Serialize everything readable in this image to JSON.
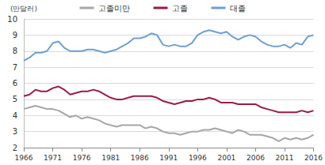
{
  "chart_data": {
    "type": "line",
    "ylabel": "(만달러)",
    "x": [
      1966,
      1967,
      1968,
      1969,
      1970,
      1971,
      1972,
      1973,
      1974,
      1975,
      1976,
      1977,
      1978,
      1979,
      1980,
      1981,
      1982,
      1983,
      1984,
      1985,
      1986,
      1987,
      1988,
      1989,
      1990,
      1991,
      1992,
      1993,
      1994,
      1995,
      1996,
      1997,
      1998,
      1999,
      2000,
      2001,
      2002,
      2003,
      2004,
      2005,
      2006,
      2007,
      2008,
      2009,
      2010,
      2011,
      2012,
      2013,
      2014,
      2015,
      2016
    ],
    "series": [
      {
        "name": "고졸미만",
        "color": "#a6a6a6",
        "values": [
          4.4,
          4.5,
          4.6,
          4.5,
          4.4,
          4.4,
          4.3,
          4.1,
          3.9,
          4.0,
          3.8,
          3.9,
          3.8,
          3.7,
          3.5,
          3.4,
          3.3,
          3.4,
          3.4,
          3.4,
          3.4,
          3.2,
          3.3,
          3.2,
          3.0,
          2.9,
          2.9,
          2.8,
          2.9,
          3.0,
          3.0,
          3.1,
          3.1,
          3.2,
          3.1,
          3.0,
          2.9,
          3.1,
          3.0,
          2.8,
          2.8,
          2.8,
          2.7,
          2.6,
          2.4,
          2.6,
          2.5,
          2.6,
          2.5,
          2.6,
          2.8
        ]
      },
      {
        "name": "고졸",
        "color": "#9b1b4a",
        "values": [
          5.2,
          5.3,
          5.6,
          5.5,
          5.5,
          5.7,
          5.8,
          5.6,
          5.3,
          5.4,
          5.5,
          5.5,
          5.6,
          5.5,
          5.3,
          5.1,
          5.0,
          5.0,
          5.1,
          5.2,
          5.2,
          5.2,
          5.2,
          5.1,
          4.9,
          4.8,
          4.7,
          4.8,
          4.9,
          4.9,
          5.0,
          5.0,
          5.1,
          5.0,
          4.8,
          4.8,
          4.8,
          4.7,
          4.7,
          4.7,
          4.7,
          4.5,
          4.4,
          4.3,
          4.2,
          4.2,
          4.2,
          4.2,
          4.3,
          4.2,
          4.3
        ]
      },
      {
        "name": "대졸",
        "color": "#6f9fd0",
        "values": [
          7.4,
          7.6,
          7.9,
          7.9,
          8.0,
          8.5,
          8.6,
          8.2,
          8.0,
          8.0,
          8.0,
          8.1,
          8.1,
          8.0,
          7.9,
          8.0,
          8.1,
          8.3,
          8.5,
          8.8,
          8.8,
          8.9,
          9.1,
          9.0,
          8.4,
          8.3,
          8.4,
          8.3,
          8.3,
          8.5,
          9.0,
          9.2,
          9.3,
          9.2,
          9.1,
          9.2,
          8.9,
          8.7,
          8.9,
          9.0,
          8.9,
          8.6,
          8.4,
          8.3,
          8.3,
          8.4,
          8.2,
          8.5,
          8.4,
          8.9,
          9.0
        ]
      }
    ],
    "xlim": [
      1966,
      2016
    ],
    "xticks": [
      1966,
      1971,
      1976,
      1981,
      1986,
      1991,
      1996,
      2001,
      2006,
      2011,
      2016
    ],
    "ylim": [
      2,
      10
    ],
    "yticks": [
      2,
      3,
      4,
      5,
      6,
      7,
      8,
      9,
      10
    ],
    "grid": true,
    "legend": "top"
  }
}
